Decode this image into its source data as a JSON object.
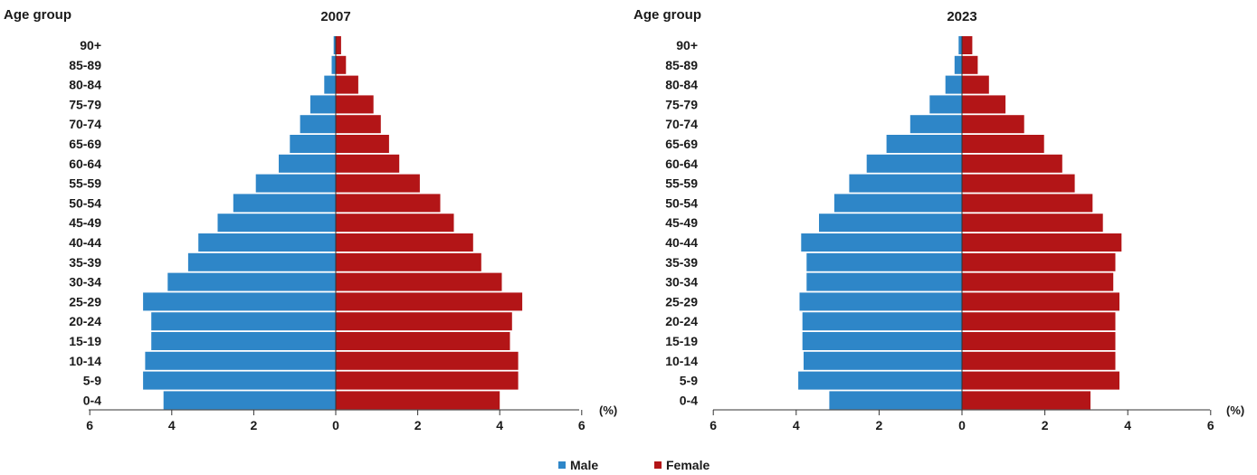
{
  "legend": {
    "male_label": "Male",
    "female_label": "Female",
    "male_color": "#2e86c8",
    "female_color": "#b31517"
  },
  "chart_data": [
    {
      "type": "bar",
      "orientation": "horizontal-pyramid",
      "title": "2007",
      "ylabel": "Age group",
      "xlabel": "",
      "unit_label": "(%)",
      "xlim": [
        -6,
        6
      ],
      "x_ticks": [
        "6",
        "4",
        "2",
        "0",
        "2",
        "4",
        "6"
      ],
      "categories": [
        "90+",
        "85-89",
        "80-84",
        "75-79",
        "70-74",
        "65-69",
        "60-64",
        "55-59",
        "50-54",
        "45-49",
        "40-44",
        "35-39",
        "30-34",
        "25-29",
        "20-24",
        "15-19",
        "10-14",
        "5-9",
        "0-4"
      ],
      "grid": false,
      "legend_position": "bottom-center",
      "series": [
        {
          "name": "Male",
          "values": [
            0.05,
            0.1,
            0.28,
            0.62,
            0.87,
            1.12,
            1.39,
            1.95,
            2.5,
            2.88,
            3.35,
            3.6,
            4.1,
            4.7,
            4.5,
            4.5,
            4.65,
            4.7,
            4.2
          ]
        },
        {
          "name": "Female",
          "values": [
            0.13,
            0.25,
            0.55,
            0.92,
            1.1,
            1.3,
            1.55,
            2.05,
            2.55,
            2.88,
            3.35,
            3.55,
            4.05,
            4.55,
            4.3,
            4.25,
            4.45,
            4.45,
            4.0
          ]
        }
      ]
    },
    {
      "type": "bar",
      "orientation": "horizontal-pyramid",
      "title": "2023",
      "ylabel": "Age group",
      "xlabel": "",
      "unit_label": "(%)",
      "xlim": [
        -6,
        6
      ],
      "x_ticks": [
        "6",
        "4",
        "2",
        "0",
        "2",
        "4",
        "6"
      ],
      "categories": [
        "90+",
        "85-89",
        "80-84",
        "75-79",
        "70-74",
        "65-69",
        "60-64",
        "55-59",
        "50-54",
        "45-49",
        "40-44",
        "35-39",
        "30-34",
        "25-29",
        "20-24",
        "15-19",
        "10-14",
        "5-9",
        "0-4"
      ],
      "grid": false,
      "legend_position": "bottom-center",
      "series": [
        {
          "name": "Male",
          "values": [
            0.08,
            0.18,
            0.4,
            0.78,
            1.25,
            1.82,
            2.3,
            2.72,
            3.08,
            3.45,
            3.88,
            3.75,
            3.75,
            3.92,
            3.85,
            3.85,
            3.82,
            3.95,
            3.2
          ]
        },
        {
          "name": "Female",
          "values": [
            0.25,
            0.38,
            0.65,
            1.05,
            1.5,
            1.98,
            2.42,
            2.72,
            3.15,
            3.4,
            3.85,
            3.7,
            3.65,
            3.8,
            3.7,
            3.7,
            3.7,
            3.8,
            3.1
          ]
        }
      ]
    }
  ]
}
